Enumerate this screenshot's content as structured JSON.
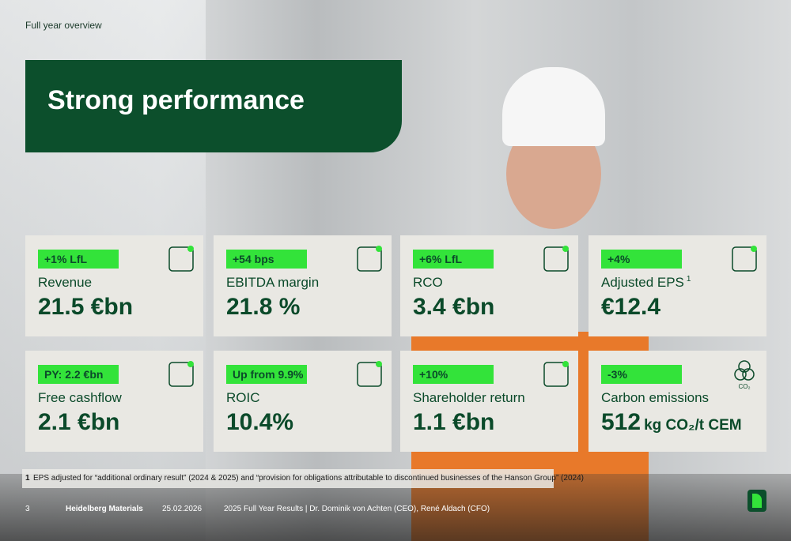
{
  "header": {
    "section": "Full year overview",
    "title": "Strong performance"
  },
  "cards": [
    {
      "badge": "+1% LfL",
      "label": "Revenue",
      "value": "21.5 €bn"
    },
    {
      "badge": "+54 bps",
      "label": "EBITDA margin",
      "value": "21.8 %"
    },
    {
      "badge": "+6% LfL",
      "label": "RCO",
      "value": "3.4 €bn"
    },
    {
      "badge": "+4%",
      "label": "Adjusted EPS",
      "footnote_ref": "1",
      "value": "€12.4"
    },
    {
      "badge": "PY: 2.2 €bn",
      "label": "Free cashflow",
      "value": "2.1 €bn"
    },
    {
      "badge": "Up from 9.9%",
      "label": "ROIC",
      "value": "10.4%"
    },
    {
      "badge": "+10%",
      "label": "Shareholder return",
      "value": "1.1 €bn"
    },
    {
      "badge": "-3%",
      "label": "Carbon emissions",
      "value": "512",
      "unit": "kg CO₂/t CEM",
      "icon_text": "CO₂"
    }
  ],
  "footnote": {
    "number": "1",
    "text": "EPS adjusted for “additional ordinary result” (2024 & 2025) and “provision for obligations attributable to discontinued businesses of the Hanson Group” (2024)"
  },
  "footer": {
    "page": "3",
    "company": "Heidelberg Materials",
    "date": "25.02.2026",
    "event": "2025 Full Year Results | Dr. Dominik von Achten (CEO), René Aldach (CFO)"
  }
}
